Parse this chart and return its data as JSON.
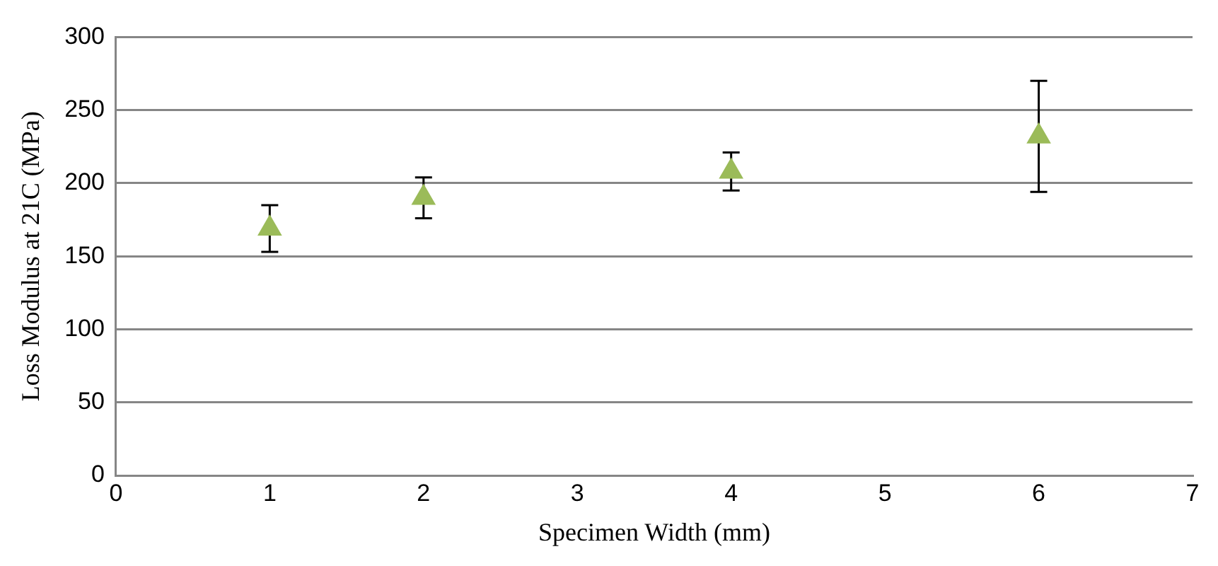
{
  "chart_data": {
    "type": "scatter",
    "xlabel": "Specimen Width (mm)",
    "ylabel": "Loss Modulus at 21C (MPa)",
    "x": [
      1,
      2,
      4,
      6
    ],
    "series": [
      {
        "color": "#9bbb59",
        "values": [
          169,
          190,
          208,
          232
        ],
        "errors": [
          16,
          14,
          13,
          38
        ]
      }
    ],
    "xlim": [
      0,
      7
    ],
    "xticks": [
      0,
      1,
      2,
      3,
      4,
      5,
      6,
      7
    ],
    "ylim": [
      0,
      300
    ],
    "yticks": [
      0,
      50,
      100,
      150,
      200,
      250,
      300
    ],
    "grid": "y",
    "marker": "triangle",
    "legend": false
  }
}
